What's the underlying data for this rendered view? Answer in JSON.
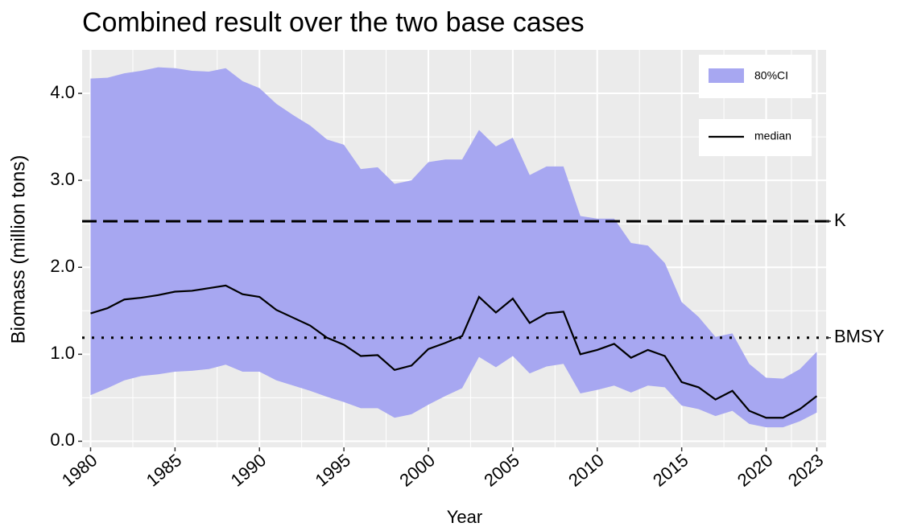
{
  "chart_data": {
    "type": "band-line",
    "title": "Combined result over the two base cases",
    "x_label": "Year",
    "y_label": "Biomass (million tons)",
    "x": [
      1980,
      1981,
      1982,
      1983,
      1984,
      1985,
      1986,
      1987,
      1988,
      1989,
      1990,
      1991,
      1992,
      1993,
      1994,
      1995,
      1996,
      1997,
      1998,
      1999,
      2000,
      2001,
      2002,
      2003,
      2004,
      2005,
      2006,
      2007,
      2008,
      2009,
      2010,
      2011,
      2012,
      2013,
      2014,
      2015,
      2016,
      2017,
      2018,
      2019,
      2020,
      2021,
      2022,
      2023
    ],
    "band": {
      "name": "80%CI",
      "color": "#a7a7f1",
      "upper": [
        4.17,
        4.18,
        4.23,
        4.26,
        4.3,
        4.29,
        4.26,
        4.25,
        4.29,
        4.14,
        4.06,
        3.88,
        3.75,
        3.63,
        3.47,
        3.41,
        3.13,
        3.15,
        2.96,
        3.0,
        3.21,
        3.24,
        3.24,
        3.58,
        3.39,
        3.49,
        3.06,
        3.16,
        3.16,
        2.59,
        2.56,
        2.56,
        2.28,
        2.25,
        2.05,
        1.6,
        1.43,
        1.2,
        1.24,
        0.89,
        0.73,
        0.72,
        0.83,
        1.03
      ],
      "lower": [
        0.53,
        0.61,
        0.7,
        0.75,
        0.77,
        0.8,
        0.81,
        0.83,
        0.88,
        0.8,
        0.8,
        0.7,
        0.64,
        0.58,
        0.51,
        0.45,
        0.38,
        0.38,
        0.27,
        0.31,
        0.42,
        0.52,
        0.61,
        0.97,
        0.85,
        0.98,
        0.78,
        0.86,
        0.89,
        0.55,
        0.59,
        0.64,
        0.56,
        0.64,
        0.62,
        0.41,
        0.37,
        0.29,
        0.35,
        0.2,
        0.16,
        0.16,
        0.23,
        0.33
      ]
    },
    "series": [
      {
        "name": "median",
        "color": "#000000",
        "values": [
          1.47,
          1.53,
          1.63,
          1.65,
          1.68,
          1.72,
          1.73,
          1.76,
          1.79,
          1.69,
          1.66,
          1.51,
          1.42,
          1.33,
          1.19,
          1.11,
          0.98,
          0.99,
          0.82,
          0.87,
          1.06,
          1.13,
          1.21,
          1.66,
          1.48,
          1.64,
          1.36,
          1.47,
          1.49,
          1.0,
          1.05,
          1.12,
          0.96,
          1.05,
          0.98,
          0.68,
          0.62,
          0.48,
          0.58,
          0.35,
          0.27,
          0.27,
          0.37,
          0.52
        ]
      }
    ],
    "reference_lines": [
      {
        "label": "K",
        "value": 2.53,
        "style": "dashed"
      },
      {
        "label": "BMSY",
        "value": 1.19,
        "style": "dotted"
      }
    ],
    "xlim": [
      1979.5,
      2023.55
    ],
    "ylim": [
      -0.07,
      4.5
    ],
    "xticks": [
      1980,
      1985,
      1990,
      1995,
      2000,
      2005,
      2010,
      2015,
      2020,
      2023
    ],
    "yticks": [
      {
        "value": 0,
        "label": "0.0"
      },
      {
        "value": 1,
        "label": "1.0"
      },
      {
        "value": 2,
        "label": "2.0"
      },
      {
        "value": 3,
        "label": "3.0"
      },
      {
        "value": 4,
        "label": "4.0"
      }
    ],
    "grid": true
  }
}
